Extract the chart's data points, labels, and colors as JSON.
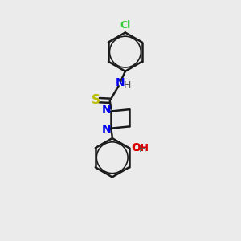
{
  "background_color": "#ebebeb",
  "bond_color": "#1a1a1a",
  "atom_colors": {
    "N": "#0000ee",
    "S": "#bbbb00",
    "O": "#dd0000",
    "Cl": "#33cc33",
    "H": "#555555",
    "C": "#1a1a1a"
  },
  "bond_width": 1.8,
  "figsize": [
    3.0,
    3.0
  ],
  "dpi": 100
}
